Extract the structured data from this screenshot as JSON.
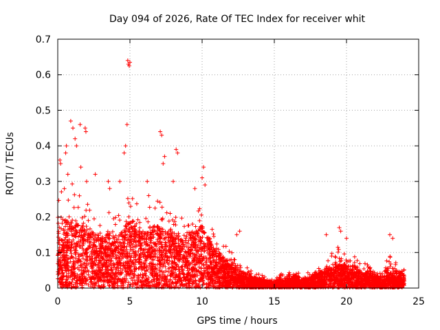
{
  "chart_data": {
    "type": "scatter",
    "title": "Day 094 of 2026, Rate Of TEC Index for receiver whit",
    "xlabel": "GPS time / hours",
    "ylabel": "ROTI / TECUs",
    "xlim": [
      0,
      25
    ],
    "ylim": [
      0,
      0.7
    ],
    "xticks": [
      0,
      5,
      10,
      15,
      20,
      25
    ],
    "xtick_labels": [
      "0",
      "5",
      "10",
      "15",
      "20",
      "25"
    ],
    "yticks": [
      0,
      0.1,
      0.2,
      0.3,
      0.4,
      0.5,
      0.6,
      0.7
    ],
    "ytick_labels": [
      "0",
      "0.1",
      "0.2",
      "0.3",
      "0.4",
      "0.5",
      "0.6",
      "0.7"
    ],
    "grid": true,
    "marker": "+",
    "marker_color": "#ff0000",
    "grid_color": "#a0a0a0",
    "series": [
      {
        "name": "ROTI",
        "envelope_x": [
          0,
          0.5,
          1,
          1.5,
          2,
          2.5,
          3,
          3.5,
          4,
          4.5,
          5,
          5.5,
          6,
          6.5,
          7,
          7.5,
          8,
          8.5,
          9,
          9.5,
          10,
          10.5,
          11,
          11.5,
          12,
          12.5,
          13,
          13.5,
          14,
          14.5,
          15,
          15.5,
          16,
          16.5,
          17,
          17.5,
          18,
          18.5,
          19,
          19.5,
          20,
          20.5,
          21,
          21.5,
          22,
          22.5,
          23,
          23.5,
          24
        ],
        "envelope_max": [
          0.3,
          0.28,
          0.3,
          0.26,
          0.25,
          0.22,
          0.2,
          0.22,
          0.21,
          0.24,
          0.3,
          0.24,
          0.22,
          0.24,
          0.25,
          0.22,
          0.21,
          0.2,
          0.2,
          0.22,
          0.25,
          0.2,
          0.16,
          0.13,
          0.11,
          0.09,
          0.06,
          0.05,
          0.04,
          0.03,
          0.03,
          0.04,
          0.05,
          0.05,
          0.04,
          0.05,
          0.07,
          0.09,
          0.1,
          0.12,
          0.1,
          0.09,
          0.08,
          0.07,
          0.06,
          0.06,
          0.09,
          0.07,
          0.06
        ],
        "envelope_typical": [
          0.08,
          0.1,
          0.12,
          0.11,
          0.11,
          0.1,
          0.09,
          0.1,
          0.09,
          0.1,
          0.12,
          0.1,
          0.1,
          0.11,
          0.11,
          0.1,
          0.1,
          0.09,
          0.1,
          0.1,
          0.11,
          0.09,
          0.07,
          0.05,
          0.04,
          0.03,
          0.02,
          0.015,
          0.012,
          0.01,
          0.01,
          0.012,
          0.015,
          0.015,
          0.015,
          0.018,
          0.025,
          0.03,
          0.035,
          0.04,
          0.035,
          0.03,
          0.028,
          0.025,
          0.022,
          0.02,
          0.025,
          0.02,
          0.018
        ],
        "outliers": [
          {
            "x": 0.15,
            "y": 0.36
          },
          {
            "x": 0.2,
            "y": 0.35
          },
          {
            "x": 0.55,
            "y": 0.38
          },
          {
            "x": 0.6,
            "y": 0.4
          },
          {
            "x": 0.7,
            "y": 0.32
          },
          {
            "x": 0.9,
            "y": 0.47
          },
          {
            "x": 1.05,
            "y": 0.45
          },
          {
            "x": 1.2,
            "y": 0.42
          },
          {
            "x": 1.3,
            "y": 0.4
          },
          {
            "x": 1.55,
            "y": 0.46
          },
          {
            "x": 1.6,
            "y": 0.34
          },
          {
            "x": 1.9,
            "y": 0.45
          },
          {
            "x": 1.95,
            "y": 0.44
          },
          {
            "x": 2.0,
            "y": 0.3
          },
          {
            "x": 2.6,
            "y": 0.32
          },
          {
            "x": 3.5,
            "y": 0.3
          },
          {
            "x": 3.6,
            "y": 0.28
          },
          {
            "x": 4.3,
            "y": 0.3
          },
          {
            "x": 4.6,
            "y": 0.38
          },
          {
            "x": 4.7,
            "y": 0.4
          },
          {
            "x": 4.8,
            "y": 0.46
          },
          {
            "x": 4.85,
            "y": 0.64
          },
          {
            "x": 4.9,
            "y": 0.63
          },
          {
            "x": 4.95,
            "y": 0.625
          },
          {
            "x": 5.0,
            "y": 0.635
          },
          {
            "x": 6.2,
            "y": 0.3
          },
          {
            "x": 6.3,
            "y": 0.26
          },
          {
            "x": 7.1,
            "y": 0.44
          },
          {
            "x": 7.2,
            "y": 0.43
          },
          {
            "x": 7.4,
            "y": 0.37
          },
          {
            "x": 7.3,
            "y": 0.35
          },
          {
            "x": 8.2,
            "y": 0.39
          },
          {
            "x": 8.3,
            "y": 0.38
          },
          {
            "x": 8.0,
            "y": 0.3
          },
          {
            "x": 9.5,
            "y": 0.28
          },
          {
            "x": 10.1,
            "y": 0.34
          },
          {
            "x": 10.0,
            "y": 0.31
          },
          {
            "x": 10.2,
            "y": 0.29
          },
          {
            "x": 12.6,
            "y": 0.16
          },
          {
            "x": 12.4,
            "y": 0.15
          },
          {
            "x": 18.6,
            "y": 0.15
          },
          {
            "x": 19.5,
            "y": 0.17
          },
          {
            "x": 19.6,
            "y": 0.16
          },
          {
            "x": 20.0,
            "y": 0.14
          },
          {
            "x": 23.0,
            "y": 0.15
          },
          {
            "x": 23.2,
            "y": 0.14
          }
        ]
      }
    ]
  }
}
